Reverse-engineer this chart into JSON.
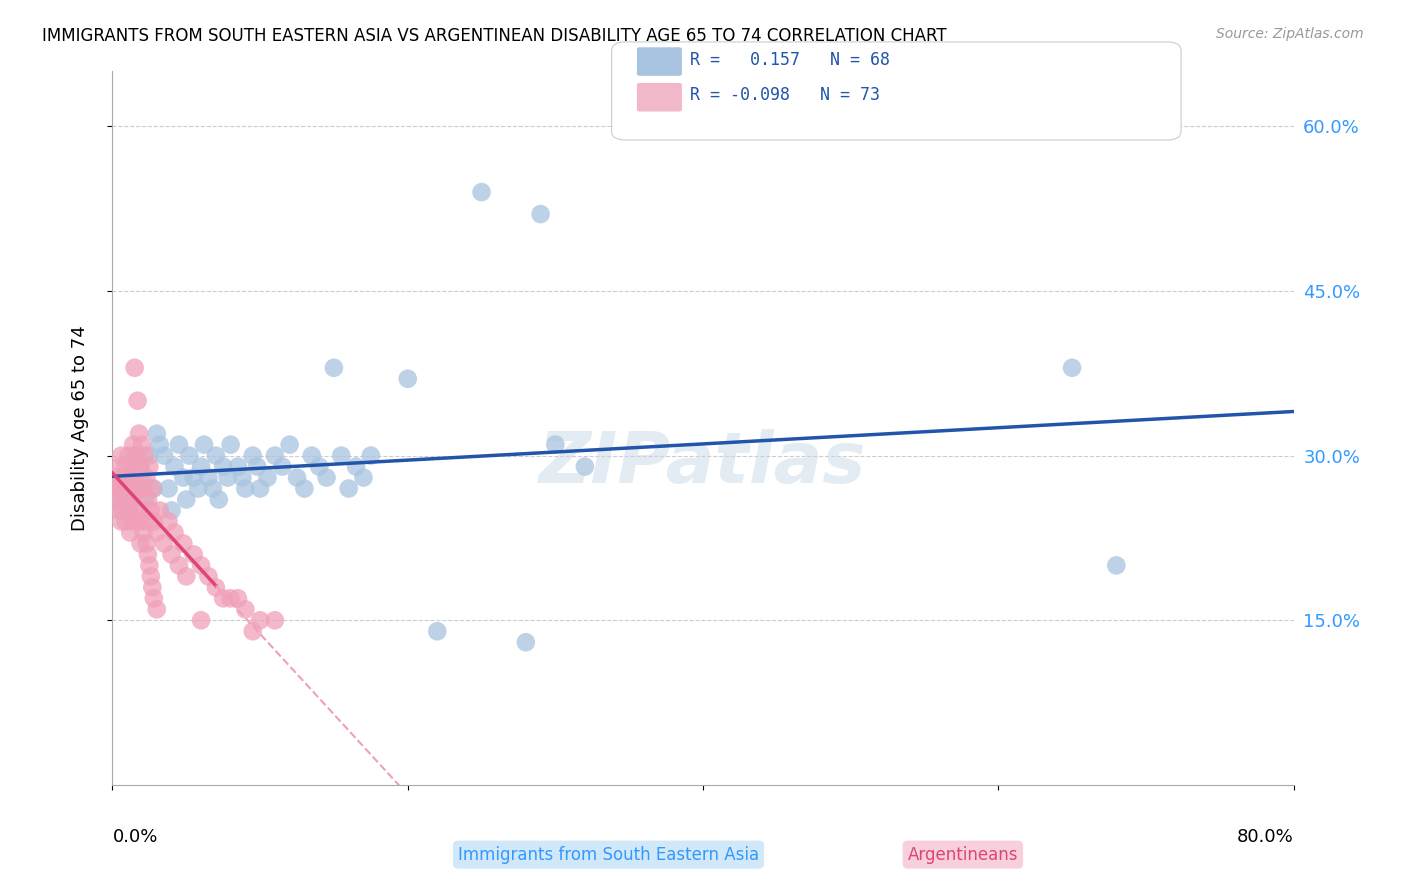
{
  "title": "IMMIGRANTS FROM SOUTH EASTERN ASIA VS ARGENTINEAN DISABILITY AGE 65 TO 74 CORRELATION CHART",
  "source": "Source: ZipAtlas.com",
  "ylabel": "Disability Age 65 to 74",
  "ytick_labels": [
    "15.0%",
    "30.0%",
    "45.0%",
    "60.0%"
  ],
  "ytick_values": [
    0.15,
    0.3,
    0.45,
    0.6
  ],
  "xlim": [
    0.0,
    0.8
  ],
  "ylim": [
    0.0,
    0.65
  ],
  "color_blue": "#a8c4e0",
  "color_pink": "#f0a0b8",
  "line_blue": "#2255aa",
  "line_pink": "#dd4477",
  "line_pink_dash": "#f0a0b8",
  "watermark": "ZIPatlas",
  "legend_box_blue": "#a8c4e0",
  "legend_box_pink": "#f0b8c8",
  "blue_scatter": [
    [
      0.003,
      0.27
    ],
    [
      0.005,
      0.26
    ],
    [
      0.006,
      0.25
    ],
    [
      0.007,
      0.27
    ],
    [
      0.008,
      0.26
    ],
    [
      0.009,
      0.25
    ],
    [
      0.01,
      0.28
    ],
    [
      0.012,
      0.27
    ],
    [
      0.013,
      0.26
    ],
    [
      0.014,
      0.28
    ],
    [
      0.015,
      0.3
    ],
    [
      0.016,
      0.27
    ],
    [
      0.018,
      0.29
    ],
    [
      0.02,
      0.28
    ],
    [
      0.022,
      0.26
    ],
    [
      0.025,
      0.3
    ],
    [
      0.028,
      0.27
    ],
    [
      0.03,
      0.32
    ],
    [
      0.032,
      0.31
    ],
    [
      0.035,
      0.3
    ],
    [
      0.038,
      0.27
    ],
    [
      0.04,
      0.25
    ],
    [
      0.042,
      0.29
    ],
    [
      0.045,
      0.31
    ],
    [
      0.048,
      0.28
    ],
    [
      0.05,
      0.26
    ],
    [
      0.052,
      0.3
    ],
    [
      0.055,
      0.28
    ],
    [
      0.058,
      0.27
    ],
    [
      0.06,
      0.29
    ],
    [
      0.062,
      0.31
    ],
    [
      0.065,
      0.28
    ],
    [
      0.068,
      0.27
    ],
    [
      0.07,
      0.3
    ],
    [
      0.072,
      0.26
    ],
    [
      0.075,
      0.29
    ],
    [
      0.078,
      0.28
    ],
    [
      0.08,
      0.31
    ],
    [
      0.085,
      0.29
    ],
    [
      0.088,
      0.28
    ],
    [
      0.09,
      0.27
    ],
    [
      0.095,
      0.3
    ],
    [
      0.098,
      0.29
    ],
    [
      0.1,
      0.27
    ],
    [
      0.105,
      0.28
    ],
    [
      0.11,
      0.3
    ],
    [
      0.115,
      0.29
    ],
    [
      0.12,
      0.31
    ],
    [
      0.125,
      0.28
    ],
    [
      0.13,
      0.27
    ],
    [
      0.135,
      0.3
    ],
    [
      0.14,
      0.29
    ],
    [
      0.145,
      0.28
    ],
    [
      0.15,
      0.38
    ],
    [
      0.155,
      0.3
    ],
    [
      0.16,
      0.27
    ],
    [
      0.165,
      0.29
    ],
    [
      0.17,
      0.28
    ],
    [
      0.175,
      0.3
    ],
    [
      0.2,
      0.37
    ],
    [
      0.22,
      0.14
    ],
    [
      0.25,
      0.54
    ],
    [
      0.28,
      0.13
    ],
    [
      0.29,
      0.52
    ],
    [
      0.3,
      0.31
    ],
    [
      0.32,
      0.29
    ],
    [
      0.65,
      0.38
    ],
    [
      0.68,
      0.2
    ]
  ],
  "pink_scatter": [
    [
      0.001,
      0.27
    ],
    [
      0.002,
      0.26
    ],
    [
      0.003,
      0.28
    ],
    [
      0.004,
      0.27
    ],
    [
      0.005,
      0.29
    ],
    [
      0.005,
      0.25
    ],
    [
      0.006,
      0.3
    ],
    [
      0.006,
      0.24
    ],
    [
      0.007,
      0.28
    ],
    [
      0.007,
      0.26
    ],
    [
      0.008,
      0.27
    ],
    [
      0.008,
      0.25
    ],
    [
      0.009,
      0.29
    ],
    [
      0.009,
      0.24
    ],
    [
      0.01,
      0.28
    ],
    [
      0.01,
      0.26
    ],
    [
      0.011,
      0.3
    ],
    [
      0.011,
      0.25
    ],
    [
      0.012,
      0.27
    ],
    [
      0.012,
      0.23
    ],
    [
      0.013,
      0.29
    ],
    [
      0.013,
      0.26
    ],
    [
      0.014,
      0.31
    ],
    [
      0.014,
      0.24
    ],
    [
      0.015,
      0.38
    ],
    [
      0.015,
      0.28
    ],
    [
      0.016,
      0.3
    ],
    [
      0.016,
      0.25
    ],
    [
      0.017,
      0.35
    ],
    [
      0.017,
      0.27
    ],
    [
      0.018,
      0.32
    ],
    [
      0.018,
      0.24
    ],
    [
      0.019,
      0.29
    ],
    [
      0.019,
      0.22
    ],
    [
      0.02,
      0.31
    ],
    [
      0.02,
      0.25
    ],
    [
      0.021,
      0.27
    ],
    [
      0.021,
      0.23
    ],
    [
      0.022,
      0.3
    ],
    [
      0.022,
      0.24
    ],
    [
      0.023,
      0.28
    ],
    [
      0.023,
      0.22
    ],
    [
      0.024,
      0.26
    ],
    [
      0.024,
      0.21
    ],
    [
      0.025,
      0.29
    ],
    [
      0.025,
      0.2
    ],
    [
      0.026,
      0.25
    ],
    [
      0.026,
      0.19
    ],
    [
      0.027,
      0.27
    ],
    [
      0.027,
      0.18
    ],
    [
      0.028,
      0.24
    ],
    [
      0.028,
      0.17
    ],
    [
      0.03,
      0.23
    ],
    [
      0.03,
      0.16
    ],
    [
      0.032,
      0.25
    ],
    [
      0.035,
      0.22
    ],
    [
      0.038,
      0.24
    ],
    [
      0.04,
      0.21
    ],
    [
      0.042,
      0.23
    ],
    [
      0.045,
      0.2
    ],
    [
      0.048,
      0.22
    ],
    [
      0.05,
      0.19
    ],
    [
      0.055,
      0.21
    ],
    [
      0.06,
      0.2
    ],
    [
      0.065,
      0.19
    ],
    [
      0.07,
      0.18
    ],
    [
      0.075,
      0.17
    ],
    [
      0.08,
      0.17
    ],
    [
      0.085,
      0.17
    ],
    [
      0.09,
      0.16
    ],
    [
      0.095,
      0.14
    ],
    [
      0.1,
      0.15
    ],
    [
      0.11,
      0.15
    ],
    [
      0.06,
      0.15
    ]
  ]
}
